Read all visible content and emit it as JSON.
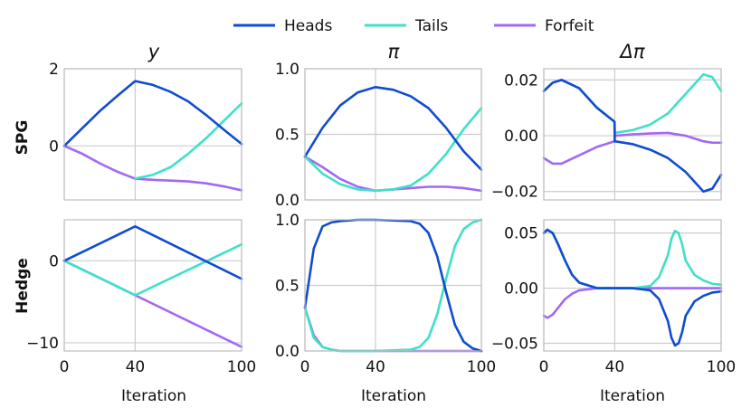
{
  "legend": {
    "placement": "top-center",
    "entries": [
      {
        "name": "Heads",
        "color": "#0f4ccf"
      },
      {
        "name": "Tails",
        "color": "#3fe0c8"
      },
      {
        "name": "Forfeit",
        "color": "#a368f2"
      }
    ]
  },
  "row_labels": [
    "SPG",
    "Hedge"
  ],
  "col_titles": [
    "y",
    "π",
    "Δπ"
  ],
  "xlabel": "Iteration",
  "colors": {
    "Heads": "#0f4ccf",
    "Tails": "#3fe0c8",
    "Forfeit": "#a368f2",
    "grid": "#cccccc",
    "frame": "#bfbfbf"
  },
  "chart_data": [
    {
      "type": "line",
      "row": "SPG",
      "title": "y",
      "x": [
        0,
        10,
        20,
        30,
        40,
        50,
        60,
        70,
        80,
        90,
        100
      ],
      "xlim": [
        0,
        100
      ],
      "ylim": [
        -1.4,
        2.0
      ],
      "xticks": [
        0,
        40,
        100
      ],
      "yticks": [
        0,
        2
      ],
      "ytick_labels": [
        "0",
        "2"
      ],
      "grid": true,
      "series": [
        {
          "name": "Heads",
          "values": [
            0,
            0.45,
            0.9,
            1.3,
            1.68,
            1.58,
            1.4,
            1.15,
            0.8,
            0.42,
            0.05
          ]
        },
        {
          "name": "Tails",
          "values": [
            0,
            null,
            null,
            null,
            -0.85,
            -0.75,
            -0.55,
            -0.2,
            0.2,
            0.65,
            1.1
          ]
        },
        {
          "name": "Forfeit",
          "values": [
            0,
            -0.2,
            -0.45,
            -0.67,
            -0.85,
            -0.88,
            -0.9,
            -0.92,
            -0.97,
            -1.05,
            -1.15
          ]
        }
      ]
    },
    {
      "type": "line",
      "row": "SPG",
      "title": "π",
      "x": [
        0,
        10,
        20,
        30,
        40,
        50,
        60,
        70,
        80,
        90,
        100
      ],
      "xlim": [
        0,
        100
      ],
      "ylim": [
        0.0,
        1.0
      ],
      "xticks": [
        0,
        40,
        100
      ],
      "yticks": [
        0.0,
        0.5,
        1.0
      ],
      "ytick_labels": [
        "0.0",
        "0.5",
        "1.0"
      ],
      "grid": true,
      "series": [
        {
          "name": "Heads",
          "values": [
            0.33,
            0.55,
            0.72,
            0.82,
            0.86,
            0.84,
            0.79,
            0.7,
            0.55,
            0.37,
            0.23
          ]
        },
        {
          "name": "Tails",
          "values": [
            0.33,
            0.2,
            0.12,
            0.08,
            0.07,
            0.08,
            0.11,
            0.2,
            0.35,
            0.54,
            0.7
          ]
        },
        {
          "name": "Forfeit",
          "values": [
            0.33,
            0.25,
            0.16,
            0.1,
            0.07,
            0.08,
            0.09,
            0.1,
            0.1,
            0.09,
            0.07
          ]
        }
      ]
    },
    {
      "type": "line",
      "row": "SPG",
      "title": "Δπ",
      "x": [
        0,
        5,
        10,
        20,
        30,
        39.9,
        40,
        50,
        60,
        70,
        80,
        90,
        95,
        100
      ],
      "xlim": [
        0,
        100
      ],
      "ylim": [
        -0.023,
        0.024
      ],
      "xticks": [
        0,
        40,
        100
      ],
      "yticks": [
        -0.02,
        0.0,
        0.02
      ],
      "ytick_labels": [
        "−0.02",
        "0.00",
        "0.02"
      ],
      "grid": true,
      "series": [
        {
          "name": "Heads",
          "values": [
            0.016,
            0.019,
            0.02,
            0.017,
            0.01,
            0.005,
            -0.002,
            -0.003,
            -0.005,
            -0.008,
            -0.013,
            -0.02,
            -0.019,
            -0.014
          ]
        },
        {
          "name": "Tails",
          "values": [
            0.016,
            0.019,
            0.02,
            0.017,
            0.01,
            0.005,
            0.001,
            0.002,
            0.004,
            0.008,
            0.015,
            0.022,
            0.021,
            0.016
          ]
        },
        {
          "name": "Forfeit",
          "values": [
            -0.008,
            -0.01,
            -0.01,
            -0.007,
            -0.004,
            -0.002,
            0.0,
            0.0005,
            0.0008,
            0.001,
            0.0,
            -0.002,
            -0.0025,
            -0.0025
          ]
        }
      ]
    },
    {
      "type": "line",
      "row": "Hedge",
      "title": "",
      "x": [
        0,
        40,
        100
      ],
      "xlim": [
        0,
        100
      ],
      "ylim": [
        -11,
        5
      ],
      "xticks": [
        0,
        40,
        100
      ],
      "xtick_labels": [
        "0",
        "40",
        "100"
      ],
      "yticks": [
        -10,
        0
      ],
      "ytick_labels": [
        "−10",
        "0"
      ],
      "grid": true,
      "xlabel": "Iteration",
      "series": [
        {
          "name": "Heads",
          "values": [
            0,
            4.2,
            -2.2
          ]
        },
        {
          "name": "Tails",
          "values": [
            0,
            -4.2,
            2.0
          ]
        },
        {
          "name": "Forfeit",
          "values": [
            0,
            -4.2,
            -10.5
          ]
        }
      ]
    },
    {
      "type": "line",
      "row": "Hedge",
      "title": "",
      "x": [
        0,
        5,
        10,
        15,
        20,
        30,
        40,
        60,
        65,
        70,
        75,
        80,
        85,
        90,
        95,
        100
      ],
      "xlim": [
        0,
        100
      ],
      "ylim": [
        0.0,
        1.0
      ],
      "xticks": [
        0,
        40,
        100
      ],
      "xtick_labels": [
        "0",
        "40",
        "100"
      ],
      "yticks": [
        0.0,
        0.5,
        1.0
      ],
      "ytick_labels": [
        "0.0",
        "0.5",
        "1.0"
      ],
      "grid": true,
      "xlabel": "Iteration",
      "series": [
        {
          "name": "Heads",
          "values": [
            0.33,
            0.78,
            0.95,
            0.98,
            0.99,
            1.0,
            1.0,
            0.99,
            0.97,
            0.9,
            0.72,
            0.45,
            0.2,
            0.07,
            0.02,
            0.0
          ]
        },
        {
          "name": "Tails",
          "values": [
            0.33,
            0.1,
            0.03,
            0.01,
            0.0,
            0.0,
            0.0,
            0.01,
            0.03,
            0.1,
            0.28,
            0.55,
            0.8,
            0.93,
            0.98,
            1.0
          ]
        },
        {
          "name": "Forfeit",
          "values": [
            0.33,
            0.12,
            0.03,
            0.01,
            0.0,
            0.0,
            0.0,
            0.0,
            0.0,
            0.0,
            0.0,
            0.0,
            0.0,
            0.0,
            0.0,
            0.0
          ]
        }
      ]
    },
    {
      "type": "line",
      "row": "Hedge",
      "title": "",
      "x": [
        0,
        2,
        5,
        8,
        12,
        16,
        20,
        30,
        40,
        50,
        60,
        65,
        70,
        72,
        74,
        76,
        78,
        80,
        85,
        90,
        95,
        100
      ],
      "xlim": [
        0,
        100
      ],
      "ylim": [
        -0.057,
        0.062
      ],
      "xticks": [
        0,
        40,
        100
      ],
      "xtick_labels": [
        "0",
        "40",
        "100"
      ],
      "yticks": [
        -0.05,
        0.0,
        0.05
      ],
      "ytick_labels": [
        "−0.05",
        "0.00",
        "0.05"
      ],
      "grid": true,
      "xlabel": "Iteration",
      "series": [
        {
          "name": "Heads",
          "values": [
            0.05,
            0.053,
            0.05,
            0.04,
            0.025,
            0.012,
            0.005,
            0.0,
            0.0,
            0.0,
            -0.002,
            -0.01,
            -0.03,
            -0.045,
            -0.052,
            -0.05,
            -0.04,
            -0.025,
            -0.012,
            -0.007,
            -0.004,
            -0.003
          ]
        },
        {
          "name": "Tails",
          "values": [
            0.05,
            0.053,
            0.05,
            0.04,
            0.025,
            0.012,
            0.005,
            0.0,
            0.0,
            0.0,
            0.002,
            0.01,
            0.03,
            0.045,
            0.052,
            0.05,
            0.04,
            0.025,
            0.012,
            0.007,
            0.004,
            0.003
          ]
        },
        {
          "name": "Forfeit",
          "values": [
            -0.025,
            -0.027,
            -0.024,
            -0.018,
            -0.01,
            -0.005,
            -0.002,
            0.0,
            0.0,
            0.0,
            0.0,
            0.0,
            0.0,
            0.0,
            0.0,
            0.0,
            0.0,
            0.0,
            0.0,
            0.0,
            0.0,
            0.0
          ]
        }
      ]
    }
  ]
}
